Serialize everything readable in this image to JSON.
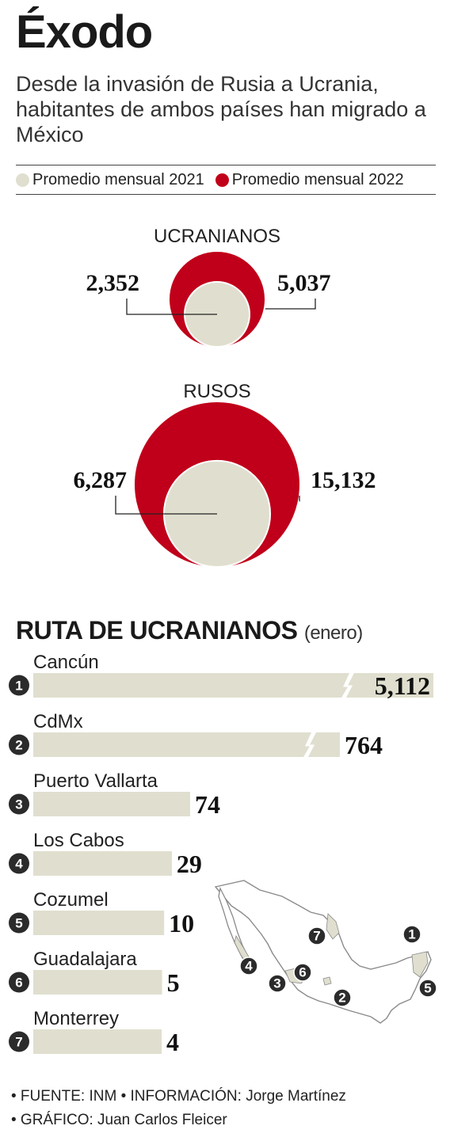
{
  "header": {
    "title": "Éxodo",
    "subtitle": "Desde la invasión de Rusia a Ucrania, habitantes de ambos países han migrado a México"
  },
  "legend": [
    {
      "label": "Promedio mensual 2021",
      "color": "#e0dfcf"
    },
    {
      "label": "Promedio mensual 2022",
      "color": "#c0001a"
    }
  ],
  "chart_data": [
    {
      "type": "bubble",
      "title": "",
      "groups": [
        {
          "name": "UCRANIANOS",
          "values": [
            2352,
            5037
          ],
          "labels": [
            "2,352",
            "5,037"
          ]
        },
        {
          "name": "RUSOS",
          "values": [
            6287,
            15132
          ],
          "labels": [
            "6,287",
            "15,132"
          ]
        }
      ],
      "series": [
        "Promedio mensual 2021",
        "Promedio mensual 2022"
      ],
      "colors": [
        "#e0dfcf",
        "#c0001a"
      ]
    },
    {
      "type": "bar",
      "orientation": "horizontal",
      "title": "RUTA DE UCRANIANOS",
      "subtitle": "(enero)",
      "categories": [
        "Cancún",
        "CdMx",
        "Puerto Vallarta",
        "Los Cabos",
        "Cozumel",
        "Guadalajara",
        "Monterrey"
      ],
      "ranks": [
        "1",
        "2",
        "3",
        "4",
        "5",
        "6",
        "7"
      ],
      "values": [
        5112,
        764,
        74,
        29,
        10,
        5,
        4
      ],
      "labels": [
        "5,112",
        "764",
        "74",
        "29",
        "10",
        "5",
        "4"
      ],
      "axis_break": [
        true,
        true,
        false,
        false,
        false,
        false,
        false
      ],
      "bar_color": "#e0dfcf"
    }
  ],
  "map": {
    "markers": [
      "1",
      "2",
      "3",
      "4",
      "5",
      "6",
      "7"
    ]
  },
  "footer": {
    "line1": "• FUENTE: INM • INFORMACIÓN: Jorge Martínez",
    "line2": "• GRÁFICO: Juan Carlos Fleicer"
  }
}
